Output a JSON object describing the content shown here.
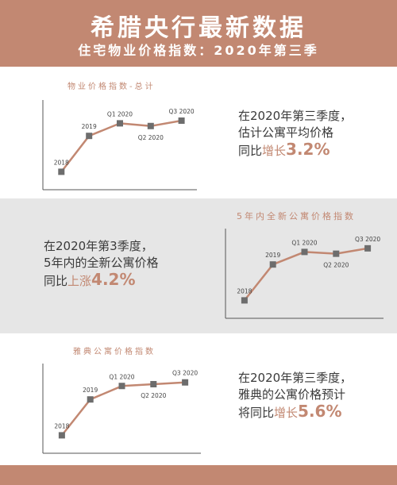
{
  "header": {
    "title": "希腊央行最新数据",
    "subtitle": "住宅物业价格指数：2020年第三季"
  },
  "colors": {
    "brand": "#c28872",
    "marker": "#6d6d6d",
    "gray_band": "#e6e6e6"
  },
  "sections": [
    {
      "chart_title": "物业价格指数-总计",
      "callout": {
        "line1": "在2020年第三季度，",
        "line2": "估计公寓平均价格",
        "line3_prefix": "同比",
        "line3_highlight": "增长",
        "value": "3.2%"
      }
    },
    {
      "chart_title": "5年内全新公寓价格指数",
      "callout": {
        "line1": "在2020年第3季度，",
        "line2": "5年内的全新公寓价格",
        "line3_prefix": "同比",
        "line3_highlight": "上涨",
        "value": "4.2%"
      }
    },
    {
      "chart_title": "雅典公寓价格指数",
      "callout": {
        "line1": "在2020年第三季度，",
        "line2": "雅典的公寓价格预计",
        "line3_prefix": "将同比",
        "line3_highlight": "增长",
        "value": "5.6%"
      }
    }
  ],
  "chart_data": [
    {
      "type": "line",
      "title": "物业价格指数-总计",
      "categories": [
        "2018",
        "2019",
        "Q1 2020",
        "Q2 2020",
        "Q3 2020"
      ],
      "values": [
        20,
        60,
        74,
        71,
        77
      ],
      "xlabel": "",
      "ylabel": "",
      "ylim": [
        0,
        100
      ],
      "grid": false
    },
    {
      "type": "line",
      "title": "5年内全新公寓价格指数",
      "categories": [
        "2018",
        "2019",
        "Q1 2020",
        "Q2 2020",
        "Q3 2020"
      ],
      "values": [
        20,
        60,
        74,
        72,
        78
      ],
      "xlabel": "",
      "ylabel": "",
      "ylim": [
        0,
        100
      ],
      "grid": false
    },
    {
      "type": "line",
      "title": "雅典公寓价格指数",
      "categories": [
        "2018",
        "2019",
        "Q1 2020",
        "Q2 2020",
        "Q3 2020"
      ],
      "values": [
        20,
        60,
        75,
        77,
        79
      ],
      "xlabel": "",
      "ylabel": "",
      "ylim": [
        0,
        100
      ],
      "grid": false
    }
  ]
}
